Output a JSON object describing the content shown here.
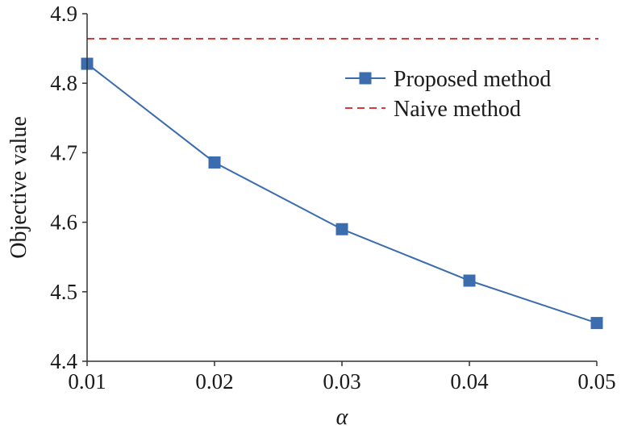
{
  "chart_data": {
    "type": "line",
    "xlabel": "α",
    "ylabel": "Objective value",
    "xlim": [
      0.01,
      0.05
    ],
    "ylim": [
      4.4,
      4.9
    ],
    "x_ticks": [
      "0.01",
      "0.02",
      "0.03",
      "0.04",
      "0.05"
    ],
    "y_ticks": [
      "4.4",
      "4.5",
      "4.6",
      "4.7",
      "4.8",
      "4.9"
    ],
    "x": [
      0.01,
      0.02,
      0.03,
      0.04,
      0.05
    ],
    "series": [
      {
        "name": "Proposed method",
        "values": [
          4.828,
          4.686,
          4.59,
          4.516,
          4.455
        ],
        "color": "#3a6cae",
        "marker": "square",
        "line_style": "solid"
      },
      {
        "name": "Naive method",
        "values": [
          4.864,
          4.864,
          4.864,
          4.864,
          4.864
        ],
        "color": "#d63a3a",
        "marker": "none",
        "line_style": "dashed"
      }
    ],
    "legend_position": "top-right",
    "grid": false
  }
}
